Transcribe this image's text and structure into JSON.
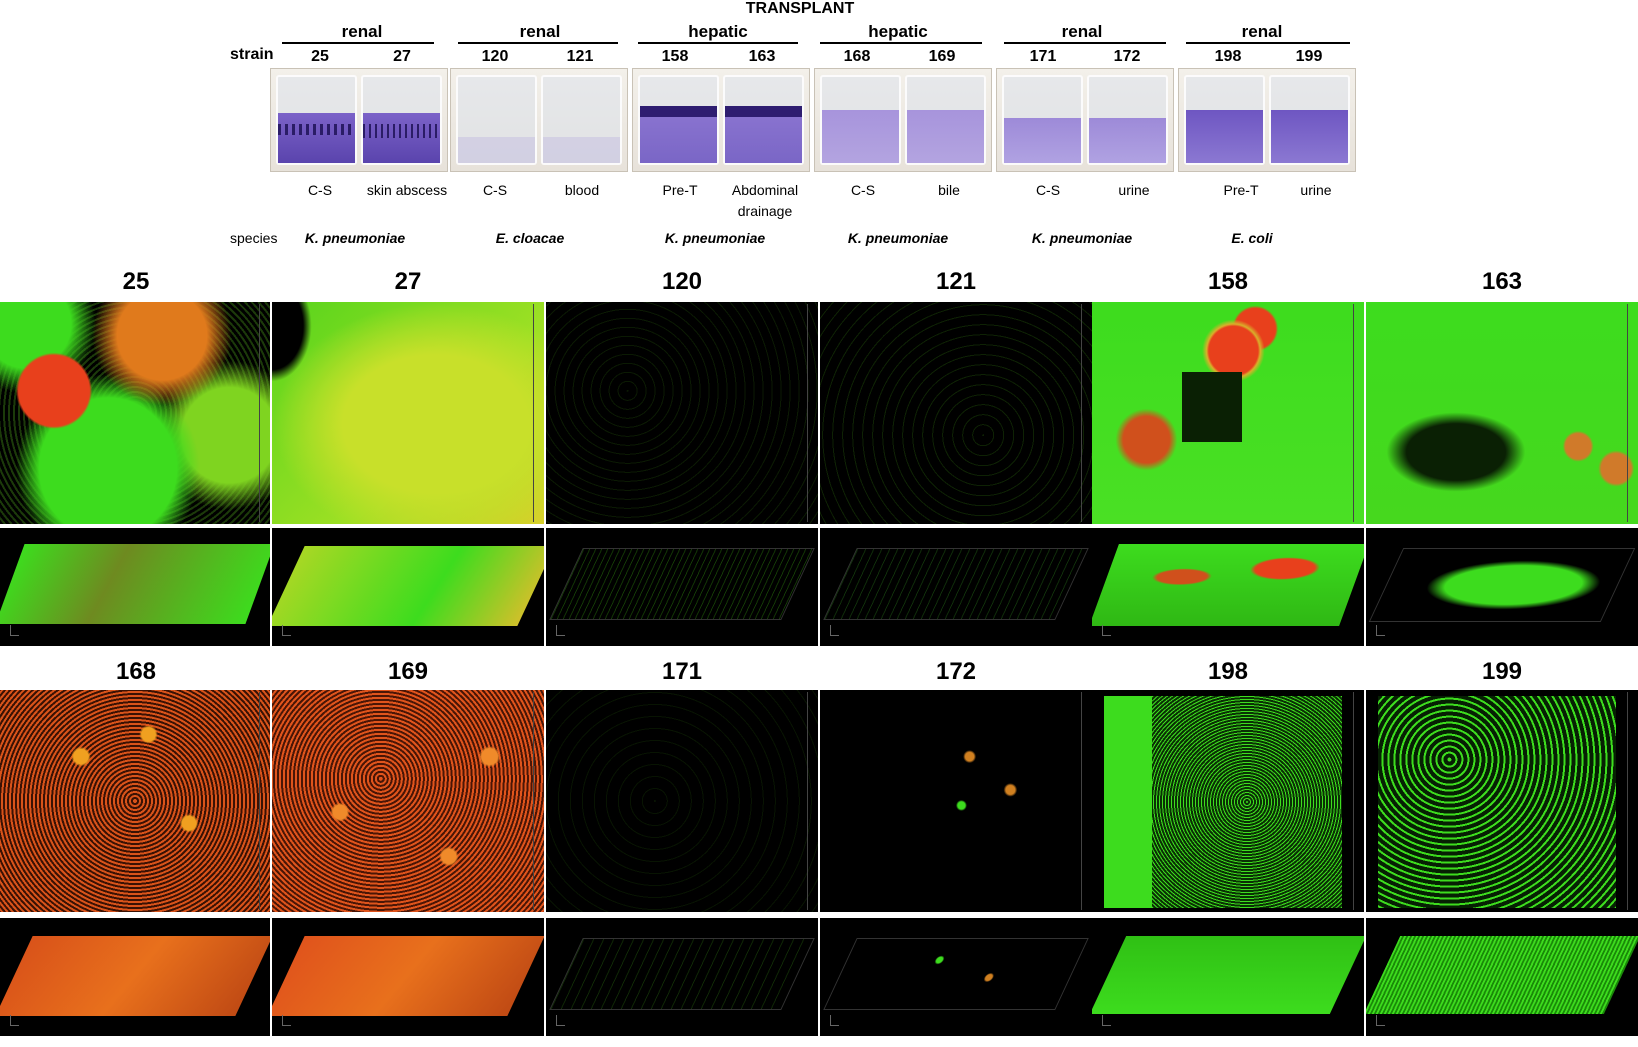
{
  "title": "TRANSPLANT",
  "strain_label": "strain",
  "species_label": "species",
  "groups": [
    {
      "transplant": "renal",
      "strains": [
        "25",
        "27"
      ],
      "sources": [
        "C-S",
        "skin abscess"
      ],
      "species": "K. pneumoniae"
    },
    {
      "transplant": "renal",
      "strains": [
        "120",
        "121"
      ],
      "sources": [
        "C-S",
        "blood"
      ],
      "species": "E. cloacae"
    },
    {
      "transplant": "hepatic",
      "strains": [
        "158",
        "163"
      ],
      "sources": [
        "Pre-T",
        "Abdominal drainage"
      ],
      "species": "K. pneumoniae"
    },
    {
      "transplant": "hepatic",
      "strains": [
        "168",
        "169"
      ],
      "sources": [
        "C-S",
        "bile"
      ],
      "species": "K. pneumoniae"
    },
    {
      "transplant": "renal",
      "strains": [
        "171",
        "172"
      ],
      "sources": [
        "C-S",
        "urine"
      ],
      "species": "K. pneumoniae"
    },
    {
      "transplant": "renal",
      "strains": [
        "198",
        "199"
      ],
      "sources": [
        "Pre-T",
        "urine"
      ],
      "species": "E. coli"
    }
  ],
  "panels_row1": [
    "25",
    "27",
    "120",
    "121",
    "158",
    "163"
  ],
  "panels_row2": [
    "168",
    "169",
    "171",
    "172",
    "198",
    "199"
  ],
  "colors": {
    "stain": "#6a4fb8",
    "green": "#3ddc1e",
    "red": "#e8401c",
    "yellow": "#d8e02a",
    "orange": "#d9531a"
  }
}
